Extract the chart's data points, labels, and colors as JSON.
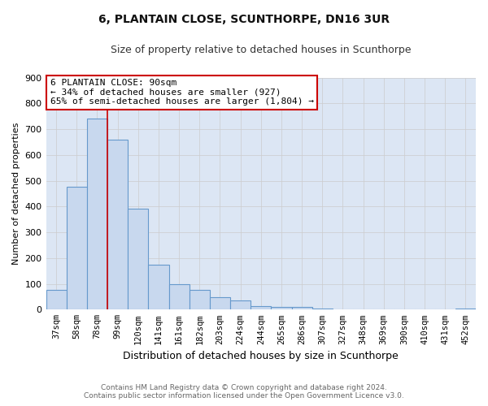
{
  "title": "6, PLANTAIN CLOSE, SCUNTHORPE, DN16 3UR",
  "subtitle": "Size of property relative to detached houses in Scunthorpe",
  "xlabel": "Distribution of detached houses by size in Scunthorpe",
  "ylabel": "Number of detached properties",
  "footnote1": "Contains HM Land Registry data © Crown copyright and database right 2024.",
  "footnote2": "Contains public sector information licensed under the Open Government Licence v3.0.",
  "bar_labels": [
    "37sqm",
    "58sqm",
    "78sqm",
    "99sqm",
    "120sqm",
    "141sqm",
    "161sqm",
    "182sqm",
    "203sqm",
    "224sqm",
    "244sqm",
    "265sqm",
    "286sqm",
    "307sqm",
    "327sqm",
    "348sqm",
    "369sqm",
    "390sqm",
    "410sqm",
    "431sqm",
    "452sqm"
  ],
  "bar_values": [
    75,
    475,
    740,
    660,
    390,
    175,
    100,
    75,
    47,
    35,
    15,
    10,
    10,
    5,
    0,
    0,
    0,
    0,
    0,
    0,
    5
  ],
  "bar_color": "#c8d8ee",
  "bar_edge_color": "#6699cc",
  "red_line_index": 2.5,
  "annotation_line1": "6 PLANTAIN CLOSE: 90sqm",
  "annotation_line2": "← 34% of detached houses are smaller (927)",
  "annotation_line3": "65% of semi-detached houses are larger (1,804) →",
  "annotation_box_edge": "#cc0000",
  "annotation_box_face": "#ffffff",
  "ylim": [
    0,
    900
  ],
  "yticks": [
    0,
    100,
    200,
    300,
    400,
    500,
    600,
    700,
    800,
    900
  ],
  "grid_color": "#cccccc",
  "plot_bg_color": "#dce6f4",
  "fig_bg_color": "#ffffff"
}
